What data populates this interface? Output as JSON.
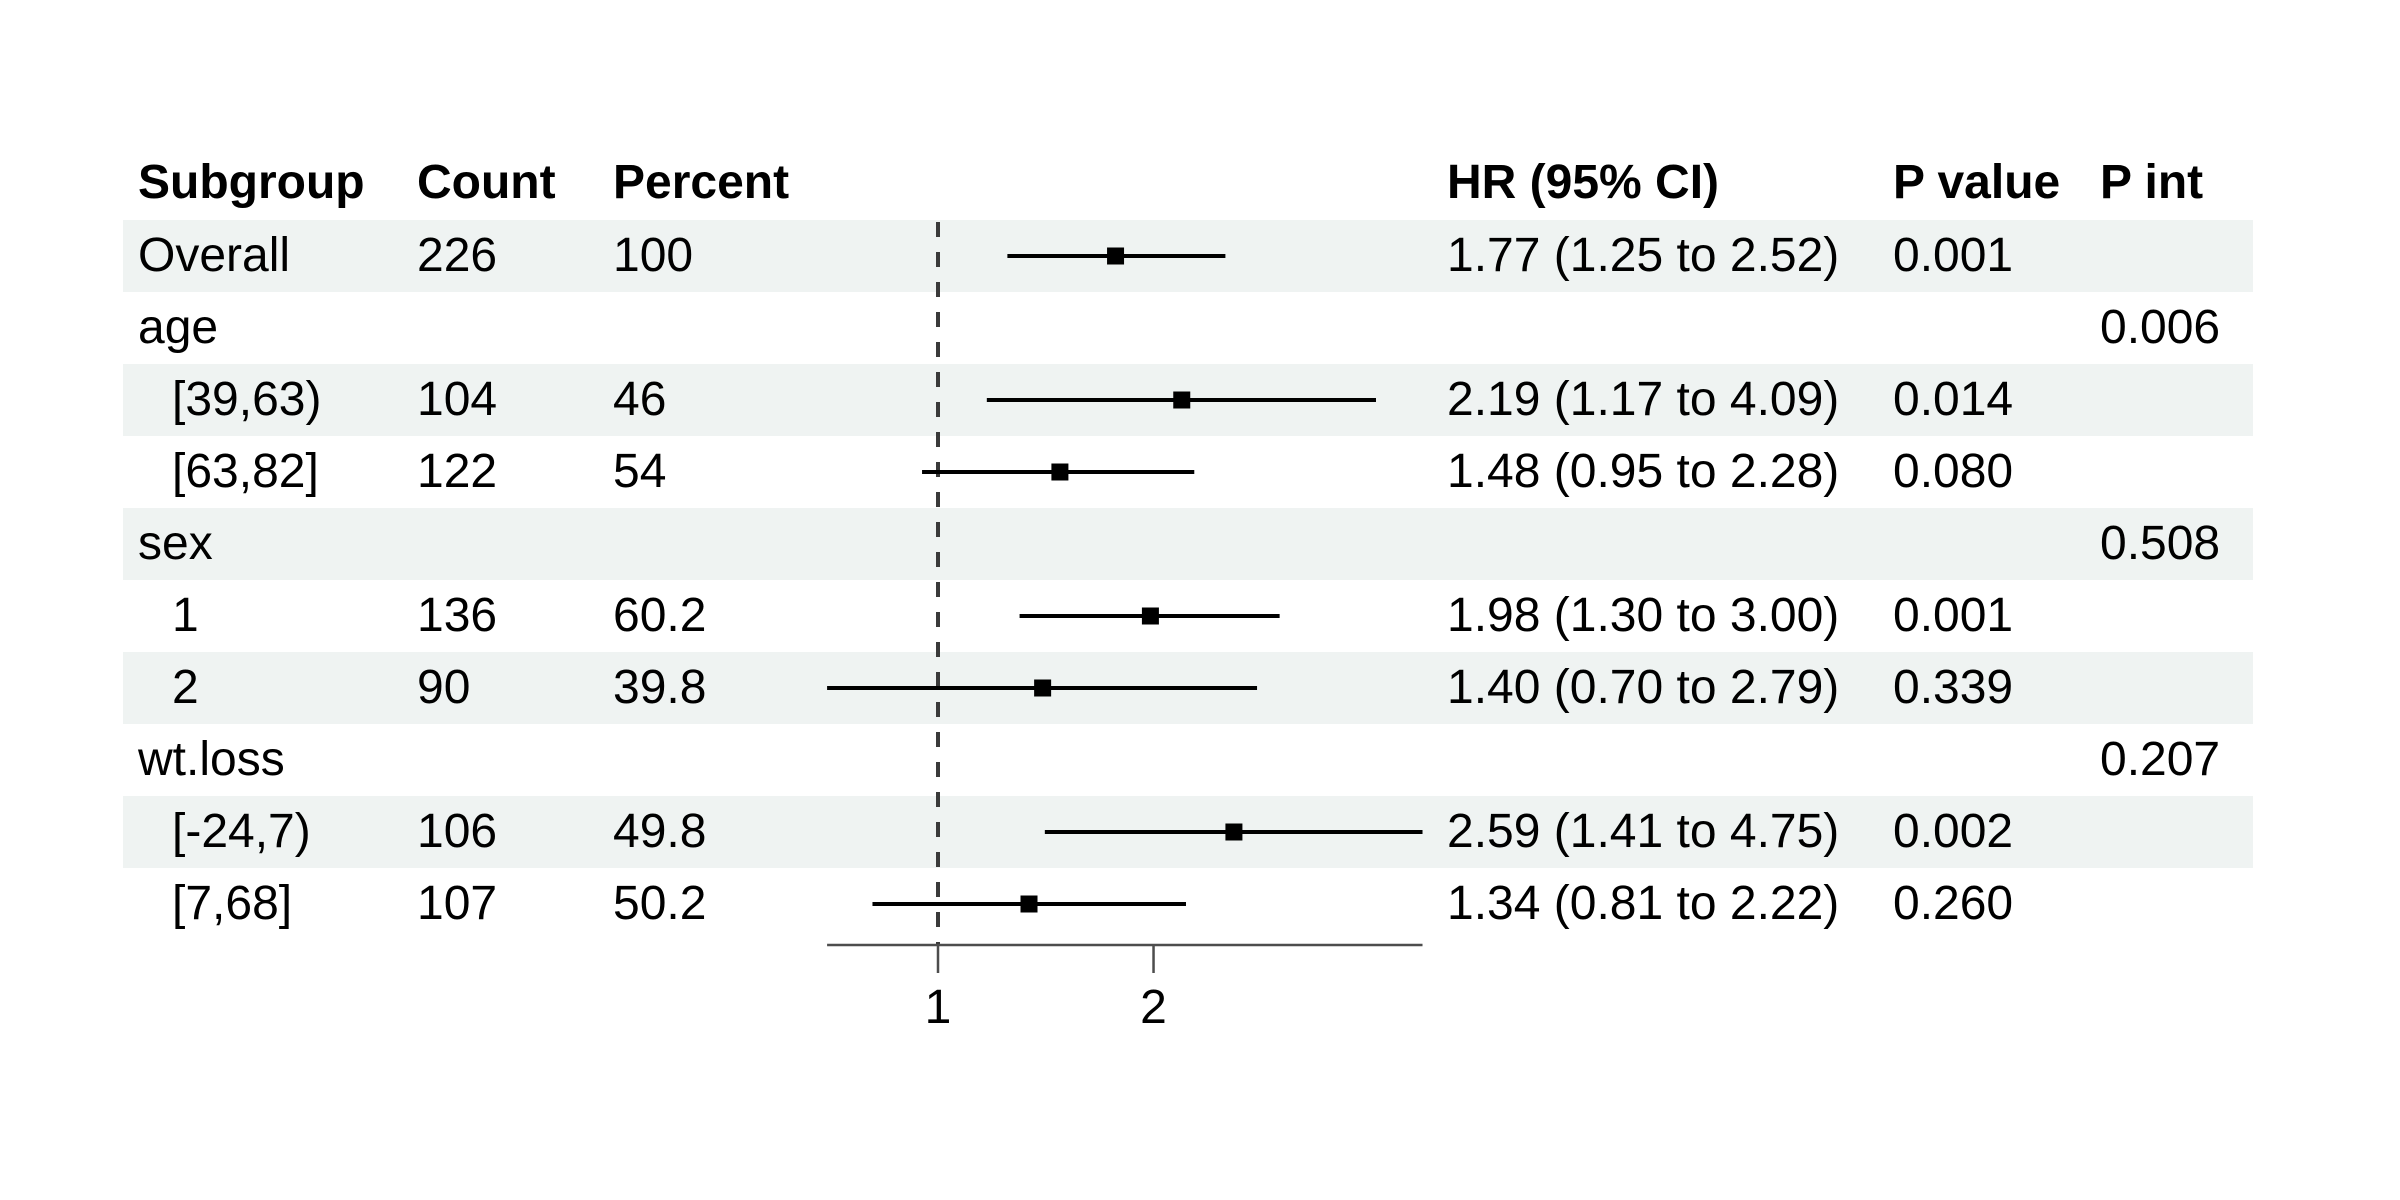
{
  "chart_data": {
    "type": "forest",
    "title": "",
    "header": {
      "subgroup": "Subgroup",
      "count": "Count",
      "percent": "Percent",
      "hr_ci": "HR (95% CI)",
      "p_value": "P value",
      "p_int": "P int"
    },
    "x_axis": {
      "scale": "log10",
      "tick_values": [
        1,
        2
      ],
      "tick_labels": [
        "1",
        "2"
      ],
      "reference_line": 1,
      "range_min": 0.7,
      "range_max": 4.75,
      "grid": false
    },
    "rows": [
      {
        "subgroup": "Overall",
        "indent": 0,
        "count": "226",
        "percent": "100",
        "hr": 1.77,
        "ci_low": 1.25,
        "ci_high": 2.52,
        "hr_ci_text": "1.77 (1.25 to 2.52)",
        "p_value": "0.001",
        "p_int": "",
        "shaded": true
      },
      {
        "subgroup": "age",
        "indent": 0,
        "count": "",
        "percent": "",
        "hr": null,
        "ci_low": null,
        "ci_high": null,
        "hr_ci_text": "",
        "p_value": "",
        "p_int": "0.006",
        "shaded": false
      },
      {
        "subgroup": "[39,63)",
        "indent": 1,
        "count": "104",
        "percent": "46",
        "hr": 2.19,
        "ci_low": 1.17,
        "ci_high": 4.09,
        "hr_ci_text": "2.19 (1.17 to 4.09)",
        "p_value": "0.014",
        "p_int": "",
        "shaded": true
      },
      {
        "subgroup": "[63,82]",
        "indent": 1,
        "count": "122",
        "percent": "54",
        "hr": 1.48,
        "ci_low": 0.95,
        "ci_high": 2.28,
        "hr_ci_text": "1.48 (0.95 to 2.28)",
        "p_value": "0.080",
        "p_int": "",
        "shaded": false
      },
      {
        "subgroup": "sex",
        "indent": 0,
        "count": "",
        "percent": "",
        "hr": null,
        "ci_low": null,
        "ci_high": null,
        "hr_ci_text": "",
        "p_value": "",
        "p_int": "0.508",
        "shaded": true
      },
      {
        "subgroup": "1",
        "indent": 1,
        "count": "136",
        "percent": "60.2",
        "hr": 1.98,
        "ci_low": 1.3,
        "ci_high": 3.0,
        "hr_ci_text": "1.98 (1.30 to 3.00)",
        "p_value": "0.001",
        "p_int": "",
        "shaded": false
      },
      {
        "subgroup": "2",
        "indent": 1,
        "count": "90",
        "percent": "39.8",
        "hr": 1.4,
        "ci_low": 0.7,
        "ci_high": 2.79,
        "hr_ci_text": "1.40 (0.70 to 2.79)",
        "p_value": "0.339",
        "p_int": "",
        "shaded": true
      },
      {
        "subgroup": "wt.loss",
        "indent": 0,
        "count": "",
        "percent": "",
        "hr": null,
        "ci_low": null,
        "ci_high": null,
        "hr_ci_text": "",
        "p_value": "",
        "p_int": "0.207",
        "shaded": false
      },
      {
        "subgroup": "[-24,7)",
        "indent": 1,
        "count": "106",
        "percent": "49.8",
        "hr": 2.59,
        "ci_low": 1.41,
        "ci_high": 4.75,
        "hr_ci_text": "2.59 (1.41 to 4.75)",
        "p_value": "0.002",
        "p_int": "",
        "shaded": true
      },
      {
        "subgroup": "[7,68]",
        "indent": 1,
        "count": "107",
        "percent": "50.2",
        "hr": 1.34,
        "ci_low": 0.81,
        "ci_high": 2.22,
        "hr_ci_text": "1.34 (0.81 to 2.22)",
        "p_value": "0.260",
        "p_int": "",
        "shaded": false
      }
    ],
    "colors": {
      "background": "#ffffff",
      "stripe": "#eff3f2",
      "text": "#000000",
      "ci_line": "#000000",
      "marker": "#000000",
      "reference_line": "#3a3a3a",
      "axis": "#4d4d4d"
    }
  }
}
